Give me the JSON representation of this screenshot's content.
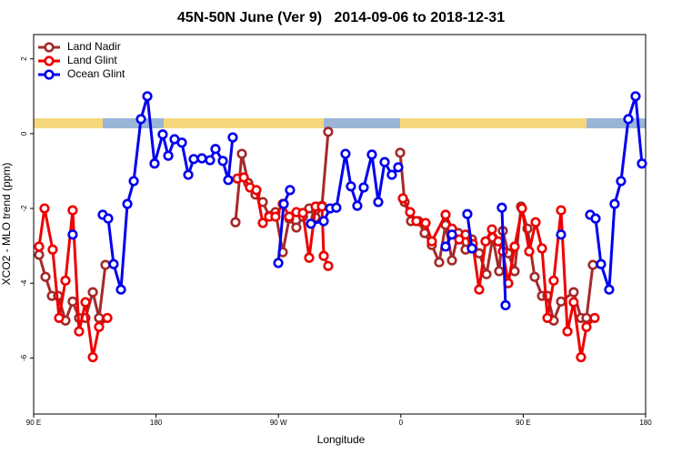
{
  "chart_data": {
    "type": "line",
    "title": "45N-50N June (Ver 9)   2014-09-06 to 2018-12-31",
    "x_label": "Longitude",
    "y_label": "XCO2 - MLO trend (ppm)",
    "xlim": [
      90,
      540
    ],
    "ylim": [
      -7.5,
      2.65
    ],
    "xticks": [
      {
        "value": 90,
        "label": "90 E"
      },
      180,
      {
        "value": 270,
        "label": "90 W"
      },
      {
        "value": 360,
        "label": "0"
      },
      {
        "value": 450,
        "label": "90 E"
      },
      {
        "value": 540,
        "label": "180"
      }
    ],
    "yticks": [
      -6,
      -4,
      -2,
      0,
      2
    ],
    "legend": "top-left",
    "series": [
      {
        "name": "Land Nadir",
        "color": "#a52a2a",
        "x": [
          94.0,
          98.7,
          103.4,
          108.0,
          113.4,
          118.7,
          123.4,
          128.1,
          133.5,
          138.1,
          142.8,
          null,
          238.4,
          243.1,
          247.8,
          253.1,
          258.5,
          263.2,
          267.8,
          273.2,
          277.9,
          283.2,
          288.0,
          292.6,
          297.3,
          302.0,
          306.6,
          null,
          359.5,
          362.8,
          367.5,
          372.9,
          377.5,
          382.8,
          388.2,
          392.9,
          397.6,
          402.3,
          407.6,
          412.3,
          417.6,
          423.0,
          427.6,
          432.3,
          435.0,
          439.0,
          443.7,
          448.4,
          453.1,
          458.4,
          463.8,
          467.8,
          472.4,
          477.8,
          487.1,
          492.5,
          496.5,
          501.2
        ],
        "values": [
          -3.24,
          -3.83,
          -4.34,
          -4.34,
          -5.0,
          -4.49,
          -4.93,
          -4.93,
          -4.24,
          -4.93,
          -3.51,
          null,
          -2.37,
          -0.54,
          -1.32,
          -1.63,
          -1.83,
          -2.2,
          -2.1,
          -3.17,
          -2.27,
          -2.51,
          -2.22,
          -2.0,
          -2.24,
          -1.93,
          0.05,
          null,
          -0.51,
          -1.83,
          -2.34,
          -2.34,
          -2.66,
          -2.98,
          -3.44,
          -2.44,
          -3.39,
          -2.66,
          -3.1,
          -2.83,
          -3.2,
          -3.76,
          -2.78,
          -3.68,
          -2.6,
          -3.2,
          -3.68,
          -1.95,
          -2.54,
          -3.83,
          -4.34,
          -4.34,
          -5.0,
          -4.49,
          -4.24,
          -4.93,
          -4.93,
          -3.51
        ]
      },
      {
        "name": "Land Glint",
        "color": "#ee0000",
        "x": [
          94.0,
          98.0,
          104.0,
          108.7,
          113.4,
          118.7,
          123.4,
          128.1,
          133.5,
          138.1,
          144.2,
          null,
          239.8,
          244.5,
          249.1,
          253.8,
          258.5,
          263.2,
          267.8,
          273.2,
          277.9,
          283.2,
          288.0,
          292.6,
          297.3,
          302.0,
          303.3,
          306.6,
          null,
          361.5,
          366.8,
          371.5,
          378.2,
          382.8,
          392.9,
          397.6,
          402.9,
          407.6,
          412.9,
          417.6,
          422.3,
          427.0,
          431.7,
          435.0,
          439.0,
          443.7,
          449.1,
          454.4,
          459.1,
          463.8,
          467.8,
          472.4,
          477.8,
          482.5,
          487.1,
          492.5,
          496.5,
          502.5
        ],
        "values": [
          -3.02,
          -2.0,
          -3.1,
          -4.93,
          -3.93,
          -2.05,
          -5.29,
          -4.51,
          -5.98,
          -5.17,
          -4.93,
          null,
          -1.2,
          -1.17,
          -1.44,
          -1.51,
          -2.39,
          -2.22,
          -2.22,
          -1.88,
          -2.22,
          -2.1,
          -2.12,
          -3.32,
          -1.95,
          -1.95,
          -3.27,
          -3.54,
          null,
          -1.73,
          -2.1,
          -2.34,
          -2.39,
          -2.88,
          -2.17,
          -2.54,
          -2.83,
          -2.7,
          -2.95,
          -4.17,
          -2.88,
          -2.56,
          -2.88,
          -3.15,
          -4.0,
          -3.02,
          -2.0,
          -3.15,
          -2.37,
          -3.07,
          -4.93,
          -3.93,
          -2.05,
          -5.29,
          -4.51,
          -5.98,
          -5.17,
          -4.93
        ]
      },
      {
        "name": "Ocean Glint",
        "color": "#0000ee",
        "x": [
          118.7,
          null,
          140.8,
          144.8,
          148.8,
          154.2,
          158.9,
          163.6,
          168.9,
          173.6,
          178.9,
          184.9,
          189.0,
          193.6,
          199.0,
          203.7,
          207.7,
          213.7,
          219.7,
          223.7,
          229.1,
          233.1,
          236.4,
          null,
          269.9,
          273.9,
          278.5,
          null,
          293.9,
          303.3,
          308.0,
          312.6,
          319.3,
          323.3,
          328.0,
          332.7,
          338.7,
          343.4,
          348.1,
          353.4,
          358.1,
          null,
          392.9,
          397.6,
          null,
          408.9,
          412.3,
          null,
          434.3,
          437.0,
          null,
          477.8,
          null,
          499.2,
          503.2,
          507.2,
          513.2,
          517.2,
          521.9,
          527.3,
          532.6,
          537.3
        ],
        "values": [
          -2.7,
          null,
          -2.17,
          -2.27,
          -3.49,
          -4.17,
          -1.88,
          -1.27,
          0.39,
          1.0,
          -0.8,
          -0.02,
          -0.59,
          -0.15,
          -0.24,
          -1.1,
          -0.68,
          -0.66,
          -0.71,
          -0.41,
          -0.73,
          -1.24,
          -0.1,
          null,
          -3.46,
          -1.88,
          -1.51,
          null,
          -2.41,
          -2.34,
          -2.0,
          -1.98,
          -0.54,
          -1.41,
          -1.93,
          -1.44,
          -0.56,
          -1.83,
          -0.76,
          -1.1,
          -0.9,
          null,
          -3.02,
          -2.7,
          null,
          -2.15,
          -3.07,
          null,
          -1.98,
          -4.59,
          null,
          -2.7,
          null,
          -2.17,
          -2.27,
          -3.49,
          -4.17,
          -1.88,
          -1.27,
          0.39,
          1.0,
          -0.8
        ]
      }
    ]
  }
}
